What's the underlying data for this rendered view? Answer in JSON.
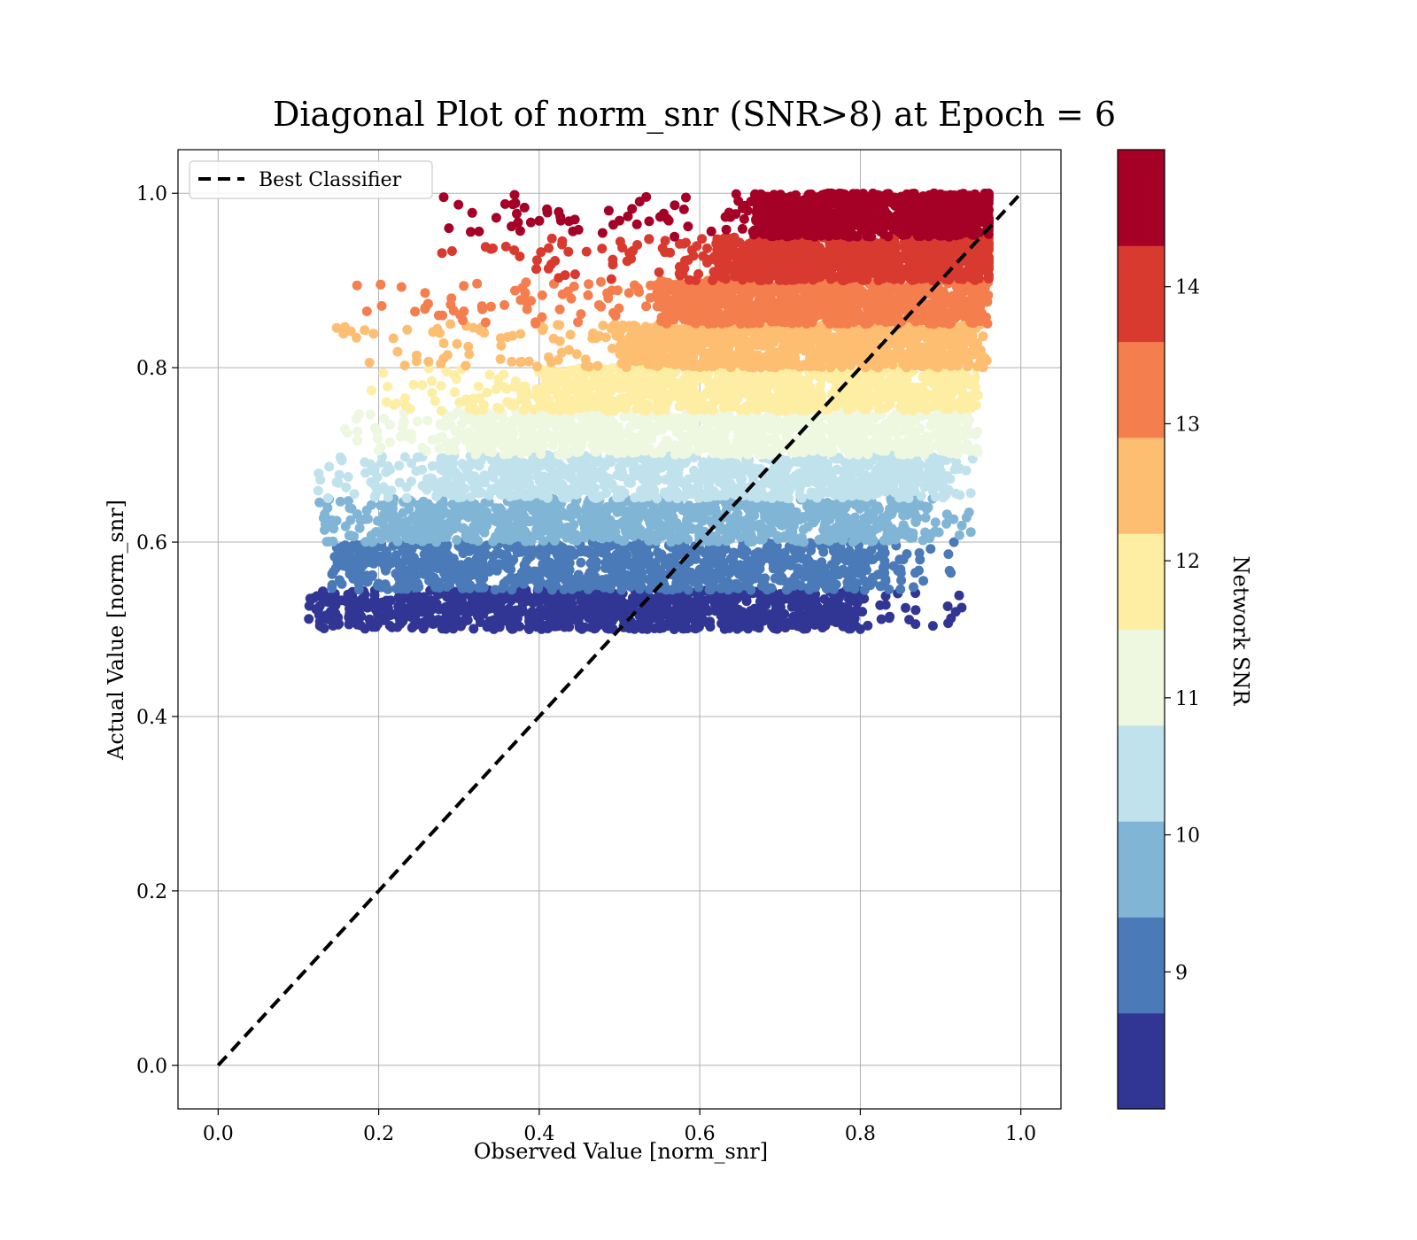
{
  "chart_data": {
    "type": "scatter",
    "title": "Diagonal Plot of norm_snr (SNR>8) at Epoch = 6",
    "xlabel": "Observed Value [norm_snr]",
    "ylabel": "Actual Value [norm_snr]",
    "xlim": [
      -0.05,
      1.05
    ],
    "ylim": [
      -0.05,
      1.05
    ],
    "xticks": [
      0.0,
      0.2,
      0.4,
      0.6,
      0.8,
      1.0
    ],
    "yticks": [
      0.0,
      0.2,
      0.4,
      0.6,
      0.8,
      1.0
    ],
    "xtick_labels": [
      "0.0",
      "0.2",
      "0.4",
      "0.6",
      "0.8",
      "1.0"
    ],
    "ytick_labels": [
      "0.0",
      "0.2",
      "0.4",
      "0.6",
      "0.8",
      "1.0"
    ],
    "grid": true,
    "legend": {
      "placement": "upper-left",
      "entries": [
        "Best Classifier"
      ]
    },
    "reference_line": {
      "name": "Best Classifier",
      "style": "dashed",
      "color": "#000000",
      "x": [
        0.0,
        1.0
      ],
      "y": [
        0.0,
        1.0
      ]
    },
    "colorbar": {
      "label": "Network SNR",
      "range": [
        8.0,
        15.0
      ],
      "ticks": [
        9,
        10,
        11,
        12,
        13,
        14
      ],
      "tick_labels": [
        "9",
        "10",
        "11",
        "12",
        "13",
        "14"
      ],
      "colors": [
        "#313695",
        "#4a7ab7",
        "#81b5d6",
        "#c0e2ed",
        "#eef7e0",
        "#feeea4",
        "#fdbe72",
        "#f47e4d",
        "#d83a2f",
        "#a50026"
      ]
    },
    "bands": [
      {
        "snr": 8.35,
        "y_range": [
          0.5,
          0.545
        ],
        "x_range": [
          0.11,
          0.93
        ],
        "dense_x": [
          0.17,
          0.8
        ],
        "color": "#313695"
      },
      {
        "snr": 9.05,
        "y_range": [
          0.545,
          0.6
        ],
        "x_range": [
          0.14,
          0.92
        ],
        "dense_x": [
          0.18,
          0.83
        ],
        "color": "#4a7ab7"
      },
      {
        "snr": 9.75,
        "y_range": [
          0.6,
          0.65
        ],
        "x_range": [
          0.12,
          0.94
        ],
        "dense_x": [
          0.22,
          0.87
        ],
        "color": "#81b5d6"
      },
      {
        "snr": 10.45,
        "y_range": [
          0.65,
          0.7
        ],
        "x_range": [
          0.12,
          0.94
        ],
        "dense_x": [
          0.28,
          0.9
        ],
        "color": "#c0e2ed"
      },
      {
        "snr": 11.15,
        "y_range": [
          0.7,
          0.75
        ],
        "x_range": [
          0.15,
          0.95
        ],
        "dense_x": [
          0.32,
          0.92
        ],
        "color": "#eef7e0"
      },
      {
        "snr": 11.85,
        "y_range": [
          0.75,
          0.8
        ],
        "x_range": [
          0.19,
          0.95
        ],
        "dense_x": [
          0.4,
          0.93
        ],
        "color": "#feeea4"
      },
      {
        "snr": 12.55,
        "y_range": [
          0.8,
          0.85
        ],
        "x_range": [
          0.13,
          0.96
        ],
        "dense_x": [
          0.5,
          0.94
        ],
        "color": "#fdbe72"
      },
      {
        "snr": 13.25,
        "y_range": [
          0.85,
          0.9
        ],
        "x_range": [
          0.16,
          0.96
        ],
        "dense_x": [
          0.55,
          0.95
        ],
        "color": "#f47e4d"
      },
      {
        "snr": 13.95,
        "y_range": [
          0.9,
          0.95
        ],
        "x_range": [
          0.27,
          0.96
        ],
        "dense_x": [
          0.62,
          0.96
        ],
        "color": "#d83a2f"
      },
      {
        "snr": 14.65,
        "y_range": [
          0.95,
          1.0
        ],
        "x_range": [
          0.28,
          0.96
        ],
        "dense_x": [
          0.67,
          0.96
        ],
        "color": "#a50026"
      }
    ]
  }
}
